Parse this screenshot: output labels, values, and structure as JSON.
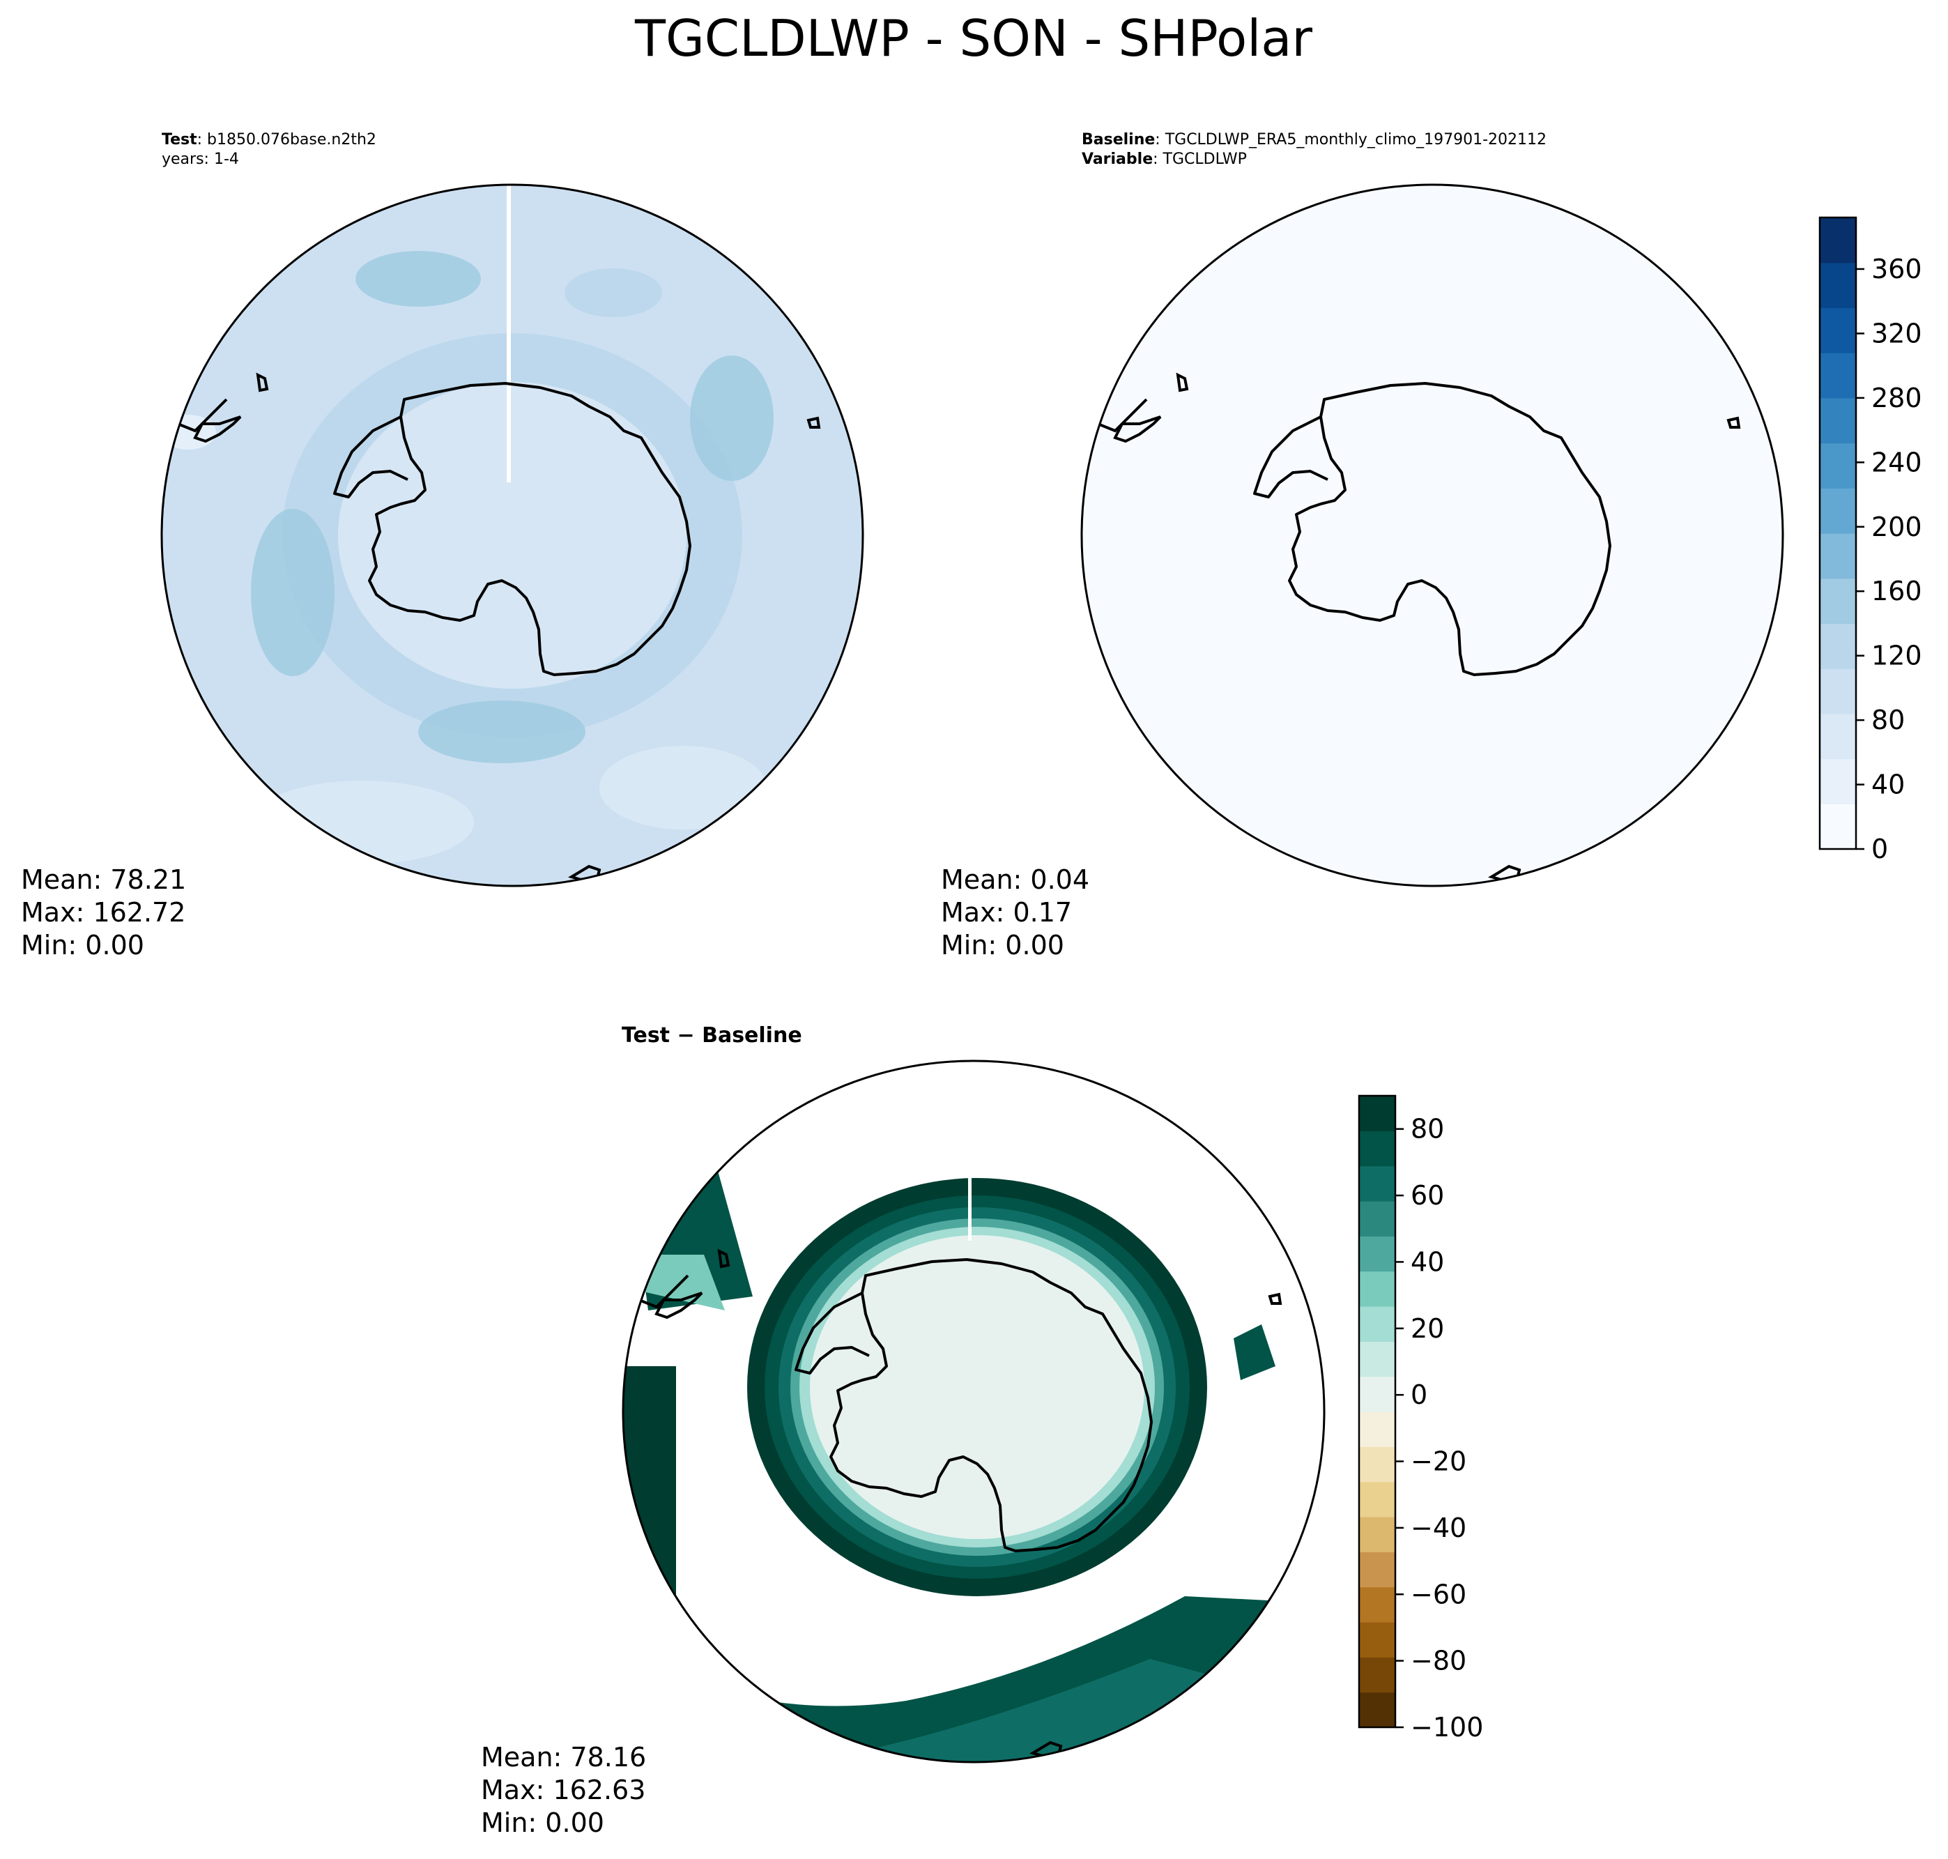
{
  "figure": {
    "title": "TGCLDLWP - SON - SHPolar"
  },
  "panels": {
    "test": {
      "label_key": "Test",
      "label_value": "b1850.076base.n2th2",
      "years": "years: 1-4",
      "stats": {
        "mean": "Mean: 78.21",
        "max": "Max: 162.72",
        "min": "Min:  0.00"
      }
    },
    "baseline": {
      "label_key": "Baseline",
      "label_value": "TGCLDLWP_ERA5_monthly_climo_197901-202112",
      "variable_key": "Variable",
      "variable_value": "TGCLDLWP",
      "stats": {
        "mean": "Mean:  0.04",
        "max": "Max:  0.17",
        "min": "Min:  0.00"
      }
    },
    "diff": {
      "title_a": "Test",
      "title_sep": "−",
      "title_b": "Baseline",
      "stats": {
        "mean": "Mean: 78.16",
        "max": "Max: 162.63",
        "min": "Min:  0.00"
      }
    }
  },
  "colors": {
    "blues": [
      "#f7fbff",
      "#e8f1fa",
      "#dbe9f6",
      "#cde0f1",
      "#bad6eb",
      "#a0cbe2",
      "#82badb",
      "#62a8d3",
      "#4a98c9",
      "#3383be",
      "#1f6eb3",
      "#0e59a2",
      "#08468b",
      "#08306b"
    ],
    "brbg": [
      "#543005",
      "#774707",
      "#985e10",
      "#b37623",
      "#c9944d",
      "#dcb76e",
      "#ead18f",
      "#f2e2b8",
      "#f5efdd",
      "#e7f2ef",
      "#c9eae3",
      "#a3ddd3",
      "#7acbbc",
      "#4ea89e",
      "#2a887f",
      "#0e6e65",
      "#015447",
      "#003c30"
    ],
    "coast": "#000000"
  },
  "chart_data": [
    {
      "type": "heatmap",
      "name": "test",
      "projection": "south-polar stereographic",
      "colorbar": "shared with baseline",
      "stats": {
        "mean": 78.21,
        "max": 162.72,
        "min": 0.0
      }
    },
    {
      "type": "heatmap",
      "name": "baseline",
      "projection": "south-polar stereographic",
      "stats": {
        "mean": 0.04,
        "max": 0.17,
        "min": 0.0
      },
      "colorbar": {
        "range": [
          0,
          392
        ],
        "ticks": [
          0,
          40,
          80,
          120,
          160,
          200,
          240,
          280,
          320,
          360
        ],
        "tick_labels": [
          "0",
          "40",
          "80",
          "120",
          "160",
          "200",
          "240",
          "280",
          "320",
          "360"
        ]
      }
    },
    {
      "type": "heatmap",
      "name": "test-minus-baseline",
      "projection": "south-polar stereographic",
      "stats": {
        "mean": 78.16,
        "max": 162.63,
        "min": 0.0
      },
      "colorbar": {
        "range": [
          -100,
          90
        ],
        "ticks": [
          80,
          60,
          40,
          20,
          0,
          -20,
          -40,
          -60,
          -80,
          -100
        ],
        "tick_labels": [
          "80",
          "60",
          "40",
          "20",
          "0",
          "−20",
          "−40",
          "−60",
          "−80",
          "−100"
        ]
      }
    }
  ]
}
